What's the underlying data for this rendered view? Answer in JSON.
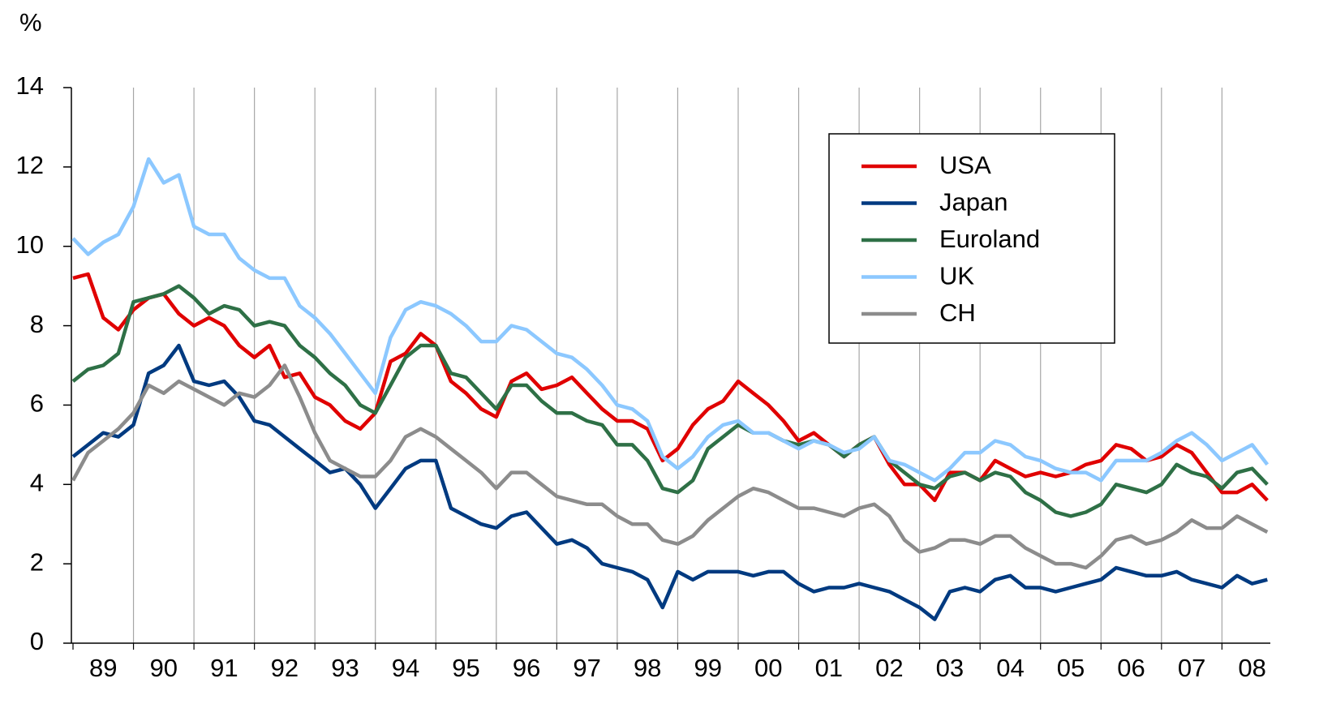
{
  "chart_data": {
    "type": "line",
    "y_label": "%",
    "x": [
      1989,
      1989.25,
      1989.5,
      1989.75,
      1990,
      1990.25,
      1990.5,
      1990.75,
      1991,
      1991.25,
      1991.5,
      1991.75,
      1992,
      1992.25,
      1992.5,
      1992.75,
      1993,
      1993.25,
      1993.5,
      1993.75,
      1994,
      1994.25,
      1994.5,
      1994.75,
      1995,
      1995.25,
      1995.5,
      1995.75,
      1996,
      1996.25,
      1996.5,
      1996.75,
      1997,
      1997.25,
      1997.5,
      1997.75,
      1998,
      1998.25,
      1998.5,
      1998.75,
      1999,
      1999.25,
      1999.5,
      1999.75,
      2000,
      2000.25,
      2000.5,
      2000.75,
      2001,
      2001.25,
      2001.5,
      2001.75,
      2002,
      2002.25,
      2002.5,
      2002.75,
      2003,
      2003.25,
      2003.5,
      2003.75,
      2004,
      2004.25,
      2004.5,
      2004.75,
      2005,
      2005.25,
      2005.5,
      2005.75,
      2006,
      2006.25,
      2006.5,
      2006.75,
      2007,
      2007.25,
      2007.5,
      2007.75,
      2008,
      2008.25,
      2008.5,
      2008.75
    ],
    "series": [
      {
        "name": "USA",
        "color": "#e00000",
        "values": [
          9.2,
          9.3,
          8.2,
          7.9,
          8.4,
          8.7,
          8.8,
          8.3,
          8.0,
          8.2,
          8.0,
          7.5,
          7.2,
          7.5,
          6.7,
          6.8,
          6.2,
          6.0,
          5.6,
          5.4,
          5.8,
          7.1,
          7.3,
          7.8,
          7.5,
          6.6,
          6.3,
          5.9,
          5.7,
          6.6,
          6.8,
          6.4,
          6.5,
          6.7,
          6.3,
          5.9,
          5.6,
          5.6,
          5.4,
          4.6,
          4.9,
          5.5,
          5.9,
          6.1,
          6.6,
          6.3,
          6.0,
          5.6,
          5.1,
          5.3,
          5.0,
          4.7,
          5.0,
          5.2,
          4.5,
          4.0,
          4.0,
          3.6,
          4.3,
          4.3,
          4.1,
          4.6,
          4.4,
          4.2,
          4.3,
          4.2,
          4.3,
          4.5,
          4.6,
          5.0,
          4.9,
          4.6,
          4.7,
          5.0,
          4.8,
          4.3,
          3.8,
          3.8,
          4.0,
          3.6
        ]
      },
      {
        "name": "Japan",
        "color": "#003a80",
        "values": [
          4.7,
          5.0,
          5.3,
          5.2,
          5.5,
          6.8,
          7.0,
          7.5,
          6.6,
          6.5,
          6.6,
          6.2,
          5.6,
          5.5,
          5.2,
          4.9,
          4.6,
          4.3,
          4.4,
          4.0,
          3.4,
          3.9,
          4.4,
          4.6,
          4.6,
          3.4,
          3.2,
          3.0,
          2.9,
          3.2,
          3.3,
          2.9,
          2.5,
          2.6,
          2.4,
          2.0,
          1.9,
          1.8,
          1.6,
          0.9,
          1.8,
          1.6,
          1.8,
          1.8,
          1.8,
          1.7,
          1.8,
          1.8,
          1.5,
          1.3,
          1.4,
          1.4,
          1.5,
          1.4,
          1.3,
          1.1,
          0.9,
          0.6,
          1.3,
          1.4,
          1.3,
          1.6,
          1.7,
          1.4,
          1.4,
          1.3,
          1.4,
          1.5,
          1.6,
          1.9,
          1.8,
          1.7,
          1.7,
          1.8,
          1.6,
          1.5,
          1.4,
          1.7,
          1.5,
          1.6
        ]
      },
      {
        "name": "Euroland",
        "color": "#2e7046",
        "values": [
          6.6,
          6.9,
          7.0,
          7.3,
          8.6,
          8.7,
          8.8,
          9.0,
          8.7,
          8.3,
          8.5,
          8.4,
          8.0,
          8.1,
          8.0,
          7.5,
          7.2,
          6.8,
          6.5,
          6.0,
          5.8,
          6.5,
          7.2,
          7.5,
          7.5,
          6.8,
          6.7,
          6.3,
          5.9,
          6.5,
          6.5,
          6.1,
          5.8,
          5.8,
          5.6,
          5.5,
          5.0,
          5.0,
          4.6,
          3.9,
          3.8,
          4.1,
          4.9,
          5.2,
          5.5,
          5.3,
          5.3,
          5.1,
          5.0,
          5.1,
          5.0,
          4.7,
          5.0,
          5.2,
          4.6,
          4.3,
          4.0,
          3.9,
          4.2,
          4.3,
          4.1,
          4.3,
          4.2,
          3.8,
          3.6,
          3.3,
          3.2,
          3.3,
          3.5,
          4.0,
          3.9,
          3.8,
          4.0,
          4.5,
          4.3,
          4.2,
          3.9,
          4.3,
          4.4,
          4.0
        ]
      },
      {
        "name": "UK",
        "color": "#8cc8ff",
        "values": [
          10.2,
          9.8,
          10.1,
          10.3,
          11.0,
          12.2,
          11.6,
          11.8,
          10.5,
          10.3,
          10.3,
          9.7,
          9.4,
          9.2,
          9.2,
          8.5,
          8.2,
          7.8,
          7.3,
          6.8,
          6.3,
          7.7,
          8.4,
          8.6,
          8.5,
          8.3,
          8.0,
          7.6,
          7.6,
          8.0,
          7.9,
          7.6,
          7.3,
          7.2,
          6.9,
          6.5,
          6.0,
          5.9,
          5.6,
          4.7,
          4.4,
          4.7,
          5.2,
          5.5,
          5.6,
          5.3,
          5.3,
          5.1,
          4.9,
          5.1,
          5.0,
          4.8,
          4.9,
          5.2,
          4.6,
          4.5,
          4.3,
          4.1,
          4.4,
          4.8,
          4.8,
          5.1,
          5.0,
          4.7,
          4.6,
          4.4,
          4.3,
          4.3,
          4.1,
          4.6,
          4.6,
          4.6,
          4.8,
          5.1,
          5.3,
          5.0,
          4.6,
          4.8,
          5.0,
          4.5
        ]
      },
      {
        "name": "CH",
        "color": "#8c8c8c",
        "values": [
          4.1,
          4.8,
          5.1,
          5.4,
          5.8,
          6.5,
          6.3,
          6.6,
          6.4,
          6.2,
          6.0,
          6.3,
          6.2,
          6.5,
          7.0,
          6.2,
          5.3,
          4.6,
          4.4,
          4.2,
          4.2,
          4.6,
          5.2,
          5.4,
          5.2,
          4.9,
          4.6,
          4.3,
          3.9,
          4.3,
          4.3,
          4.0,
          3.7,
          3.6,
          3.5,
          3.5,
          3.2,
          3.0,
          3.0,
          2.6,
          2.5,
          2.7,
          3.1,
          3.4,
          3.7,
          3.9,
          3.8,
          3.6,
          3.4,
          3.4,
          3.3,
          3.2,
          3.4,
          3.5,
          3.2,
          2.6,
          2.3,
          2.4,
          2.6,
          2.6,
          2.5,
          2.7,
          2.7,
          2.4,
          2.2,
          2.0,
          2.0,
          1.9,
          2.2,
          2.6,
          2.7,
          2.5,
          2.6,
          2.8,
          3.1,
          2.9,
          2.9,
          3.2,
          3.0,
          2.8
        ]
      }
    ],
    "xlim": [
      1989,
      2008.8
    ],
    "xticks": [
      {
        "value": 1989,
        "label": "89"
      },
      {
        "value": 1990,
        "label": "90"
      },
      {
        "value": 1991,
        "label": "91"
      },
      {
        "value": 1992,
        "label": "92"
      },
      {
        "value": 1993,
        "label": "93"
      },
      {
        "value": 1994,
        "label": "94"
      },
      {
        "value": 1995,
        "label": "95"
      },
      {
        "value": 1996,
        "label": "96"
      },
      {
        "value": 1997,
        "label": "97"
      },
      {
        "value": 1998,
        "label": "98"
      },
      {
        "value": 1999,
        "label": "99"
      },
      {
        "value": 2000,
        "label": "00"
      },
      {
        "value": 2001,
        "label": "01"
      },
      {
        "value": 2002,
        "label": "02"
      },
      {
        "value": 2003,
        "label": "03"
      },
      {
        "value": 2004,
        "label": "04"
      },
      {
        "value": 2005,
        "label": "05"
      },
      {
        "value": 2006,
        "label": "06"
      },
      {
        "value": 2007,
        "label": "07"
      },
      {
        "value": 2008,
        "label": "08"
      }
    ],
    "ylim": [
      0,
      14
    ],
    "yticks": [
      0,
      2,
      4,
      6,
      8,
      10,
      12,
      14
    ],
    "grid": true,
    "legend": "upper right"
  }
}
